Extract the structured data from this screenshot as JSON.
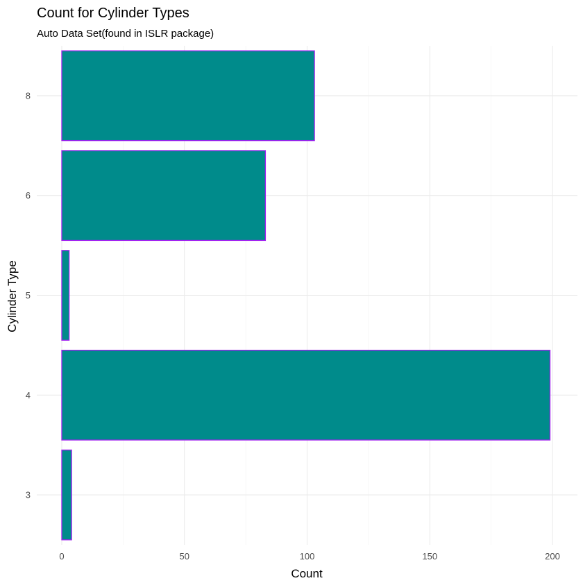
{
  "chart_data": {
    "type": "bar",
    "orientation": "horizontal",
    "title": "Count for Cylinder Types",
    "subtitle": "Auto Data Set(found in ISLR package)",
    "xlabel": "Count",
    "ylabel": "Cylinder Type",
    "categories": [
      "3",
      "4",
      "5",
      "6",
      "8"
    ],
    "values": [
      4,
      199,
      3,
      83,
      103
    ],
    "xlim": [
      0,
      200
    ],
    "xticks": [
      0,
      50,
      100,
      150,
      200
    ],
    "grid": true,
    "legend": "none",
    "colors": {
      "bar_fill": "#008B8B",
      "bar_outline": "#A020F0",
      "grid_major": "#EBEBEB",
      "grid_minor": "#F2F2F2"
    }
  }
}
